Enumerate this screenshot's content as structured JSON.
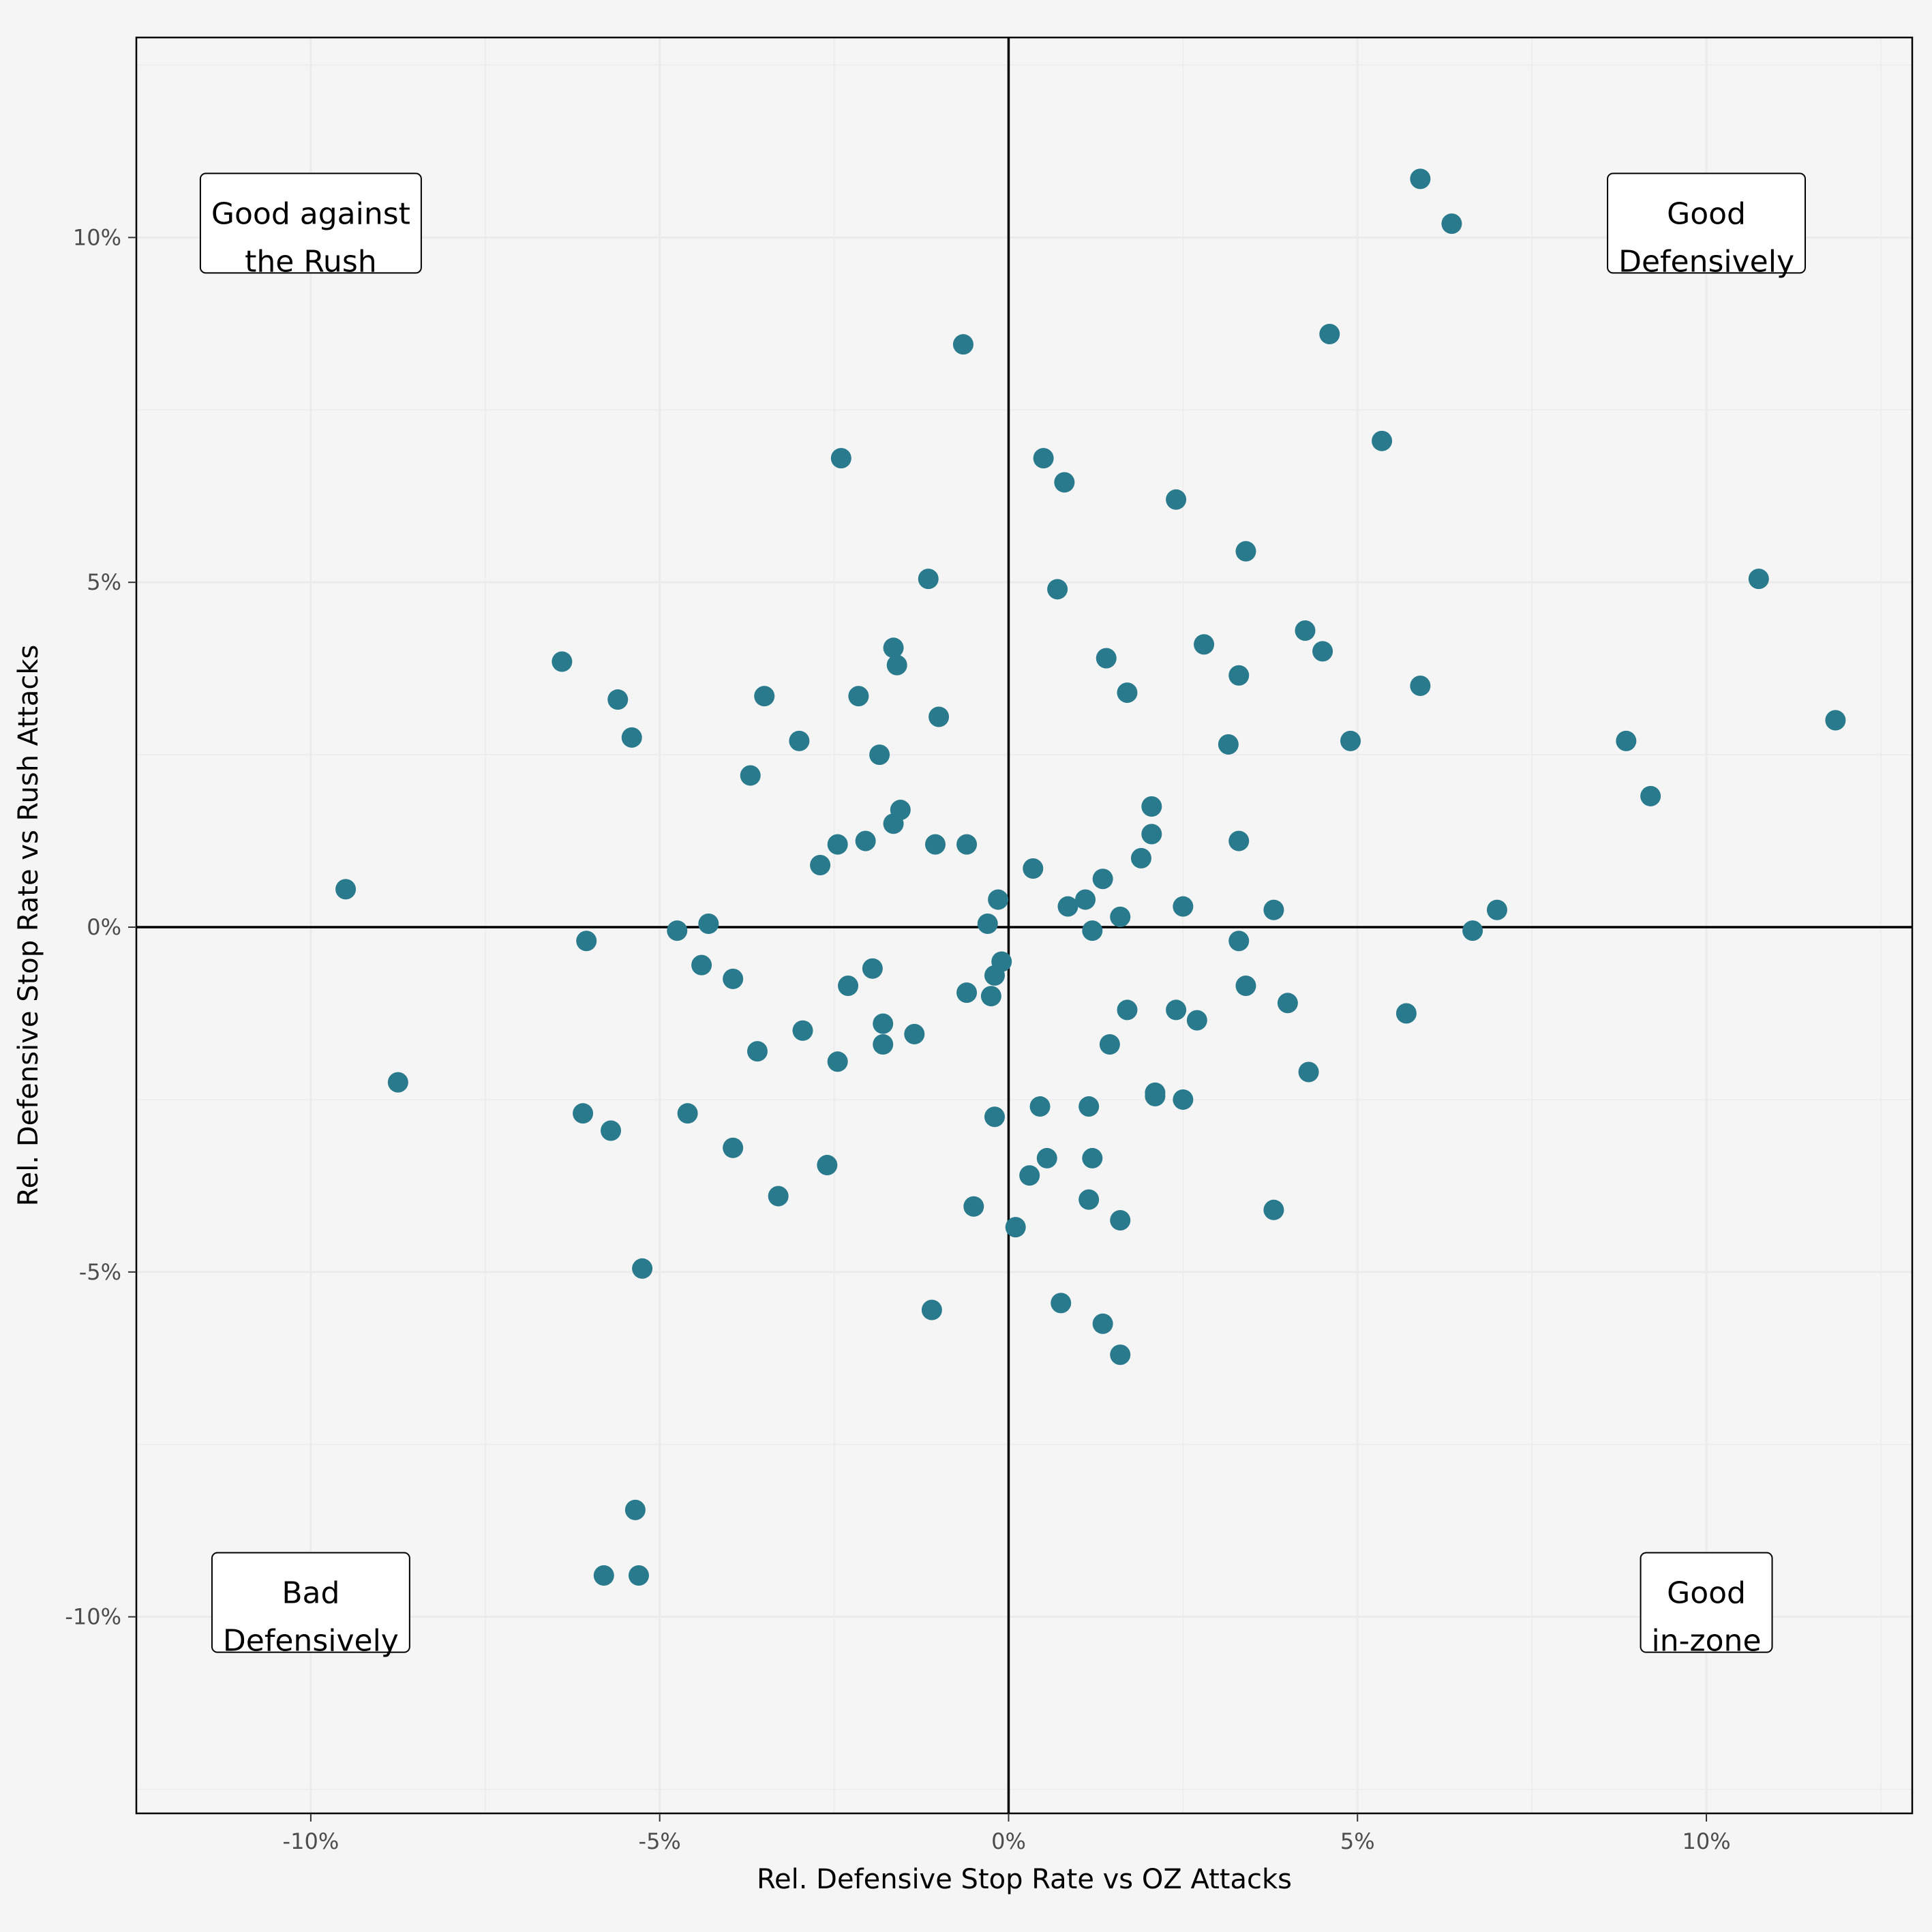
{
  "chart_data": {
    "type": "scatter",
    "title": "",
    "xlabel": "Rel. Defensive Stop Rate vs OZ Attacks",
    "ylabel": "Rel. Defensive Stop Rate vs Rush Attacks",
    "xlim": [
      -12.5,
      12.95
    ],
    "ylim": [
      -12.85,
      12.9
    ],
    "grid": true,
    "x_ticks": [
      -10,
      -5,
      0,
      5,
      10
    ],
    "x_tick_labels": [
      "-10%",
      "-5%",
      "0%",
      "5%",
      "10%"
    ],
    "y_ticks": [
      -10,
      -5,
      0,
      5,
      10
    ],
    "y_tick_labels": [
      "-10%",
      "-5%",
      "0%",
      "5%",
      "10%"
    ],
    "reference_lines": {
      "x": 0,
      "y": 0
    },
    "point_color": "#287a8c",
    "quadrant_labels": [
      {
        "id": "top-left",
        "lines": [
          "Good against",
          "the Rush"
        ],
        "x": -10,
        "y": 10
      },
      {
        "id": "top-right",
        "lines": [
          "Good",
          "Defensively"
        ],
        "x": 10,
        "y": 10
      },
      {
        "id": "bottom-left",
        "lines": [
          "Bad",
          "Defensively"
        ],
        "x": -10,
        "y": -10
      },
      {
        "id": "bottom-right",
        "lines": [
          "Good",
          "in-zone"
        ],
        "x": 10,
        "y": -10
      }
    ],
    "points": [
      [
        5.9,
        10.85
      ],
      [
        6.35,
        10.2
      ],
      [
        4.6,
        8.6
      ],
      [
        5.35,
        7.05
      ],
      [
        10.75,
        5.05
      ],
      [
        11.85,
        3.0
      ],
      [
        8.85,
        2.7
      ],
      [
        9.2,
        1.9
      ],
      [
        7.0,
        0.25
      ],
      [
        6.65,
        -0.05
      ],
      [
        5.7,
        -1.25
      ],
      [
        5.9,
        3.5
      ],
      [
        4.9,
        2.7
      ],
      [
        4.5,
        4.0
      ],
      [
        4.25,
        4.3
      ],
      [
        4.3,
        -2.1
      ],
      [
        3.4,
        5.45
      ],
      [
        3.3,
        3.65
      ],
      [
        3.15,
        2.65
      ],
      [
        3.3,
        1.25
      ],
      [
        3.8,
        0.25
      ],
      [
        3.3,
        -0.2
      ],
      [
        3.4,
        -0.85
      ],
      [
        4.0,
        -1.1
      ],
      [
        3.8,
        -4.1
      ],
      [
        2.8,
        4.1
      ],
      [
        2.4,
        6.2
      ],
      [
        1.7,
        3.4
      ],
      [
        2.05,
        1.75
      ],
      [
        2.05,
        1.35
      ],
      [
        1.9,
        1.0
      ],
      [
        2.5,
        0.3
      ],
      [
        2.4,
        -1.2
      ],
      [
        2.7,
        -1.35
      ],
      [
        2.1,
        -2.4
      ],
      [
        2.1,
        -2.45
      ],
      [
        2.5,
        -2.5
      ],
      [
        1.7,
        -1.2
      ],
      [
        1.45,
        -1.7
      ],
      [
        1.4,
        3.9
      ],
      [
        1.35,
        0.7
      ],
      [
        1.6,
        0.15
      ],
      [
        1.1,
        0.4
      ],
      [
        0.85,
        0.3
      ],
      [
        1.2,
        -0.05
      ],
      [
        0.8,
        6.45
      ],
      [
        0.5,
        6.8
      ],
      [
        0.7,
        4.9
      ],
      [
        0.35,
        0.85
      ],
      [
        1.15,
        -2.6
      ],
      [
        1.2,
        -3.35
      ],
      [
        1.15,
        -3.95
      ],
      [
        1.6,
        -4.25
      ],
      [
        0.45,
        -2.6
      ],
      [
        0.55,
        -3.35
      ],
      [
        0.3,
        -3.6
      ],
      [
        0.1,
        -4.35
      ],
      [
        0.75,
        -5.45
      ],
      [
        1.35,
        -5.75
      ],
      [
        1.6,
        -6.2
      ],
      [
        -0.65,
        8.45
      ],
      [
        -0.15,
        0.4
      ],
      [
        -0.3,
        0.05
      ],
      [
        -0.1,
        -0.5
      ],
      [
        -0.2,
        -0.7
      ],
      [
        -0.25,
        -1.0
      ],
      [
        -0.6,
        -0.95
      ],
      [
        -0.2,
        -2.75
      ],
      [
        -0.5,
        -4.05
      ],
      [
        -1.1,
        -5.55
      ],
      [
        -1.15,
        5.05
      ],
      [
        -1.0,
        3.05
      ],
      [
        -1.6,
        3.8
      ],
      [
        -1.65,
        4.05
      ],
      [
        -1.85,
        2.5
      ],
      [
        -1.55,
        1.7
      ],
      [
        -1.65,
        1.5
      ],
      [
        -1.05,
        1.2
      ],
      [
        -0.6,
        1.2
      ],
      [
        -1.35,
        -1.55
      ],
      [
        -1.8,
        -1.4
      ],
      [
        -1.8,
        -1.7
      ],
      [
        -2.4,
        6.8
      ],
      [
        -2.15,
        3.35
      ],
      [
        -2.05,
        1.25
      ],
      [
        -2.45,
        1.2
      ],
      [
        -2.7,
        0.9
      ],
      [
        -1.95,
        -0.6
      ],
      [
        -2.3,
        -0.85
      ],
      [
        -2.45,
        -1.95
      ],
      [
        -2.6,
        -3.45
      ],
      [
        -3.0,
        2.7
      ],
      [
        -3.5,
        3.35
      ],
      [
        -3.7,
        2.2
      ],
      [
        -2.95,
        -1.5
      ],
      [
        -3.6,
        -1.8
      ],
      [
        -3.95,
        -0.75
      ],
      [
        -3.95,
        -3.2
      ],
      [
        -3.3,
        -3.9
      ],
      [
        -4.4,
        -0.55
      ],
      [
        -4.3,
        0.05
      ],
      [
        -4.75,
        -0.05
      ],
      [
        -4.6,
        -2.7
      ],
      [
        -5.6,
        3.3
      ],
      [
        -5.4,
        2.75
      ],
      [
        -6.4,
        3.85
      ],
      [
        -6.05,
        -0.2
      ],
      [
        -6.1,
        -2.7
      ],
      [
        -5.7,
        -2.95
      ],
      [
        -5.25,
        -4.95
      ],
      [
        -5.35,
        -8.45
      ],
      [
        -5.8,
        -9.4
      ],
      [
        -5.3,
        -9.4
      ],
      [
        -9.5,
        0.55
      ],
      [
        -8.75,
        -2.25
      ]
    ]
  }
}
